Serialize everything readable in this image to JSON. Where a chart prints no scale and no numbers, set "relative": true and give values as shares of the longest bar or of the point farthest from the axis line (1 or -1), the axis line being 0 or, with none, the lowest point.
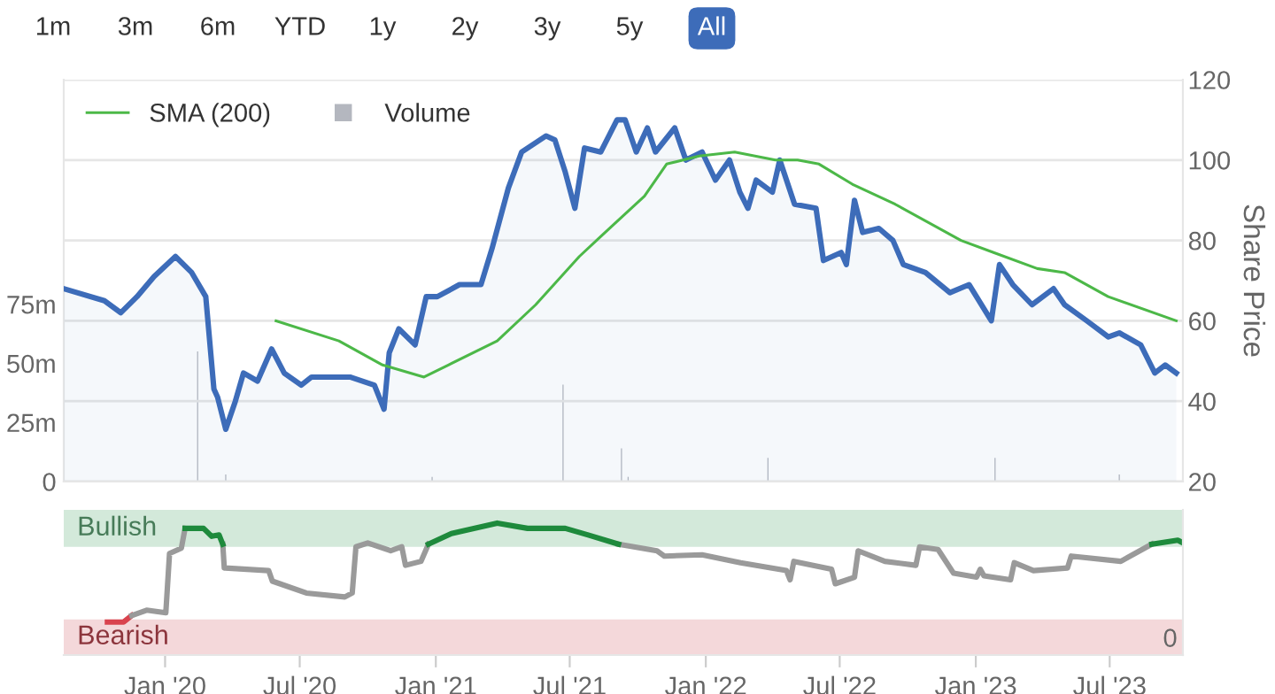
{
  "chart_data": [
    {
      "type": "line",
      "ylabel": "Share Price",
      "xlim": [
        "2019-08-17",
        "2023-10-08"
      ],
      "ylim": [
        20,
        120
      ],
      "yticks": [
        20,
        40,
        60,
        80,
        100,
        120
      ],
      "y2lim": [
        0,
        170
      ],
      "y2ticks": [
        0,
        {
          "value": 25,
          "label": "25m"
        },
        {
          "value": 50,
          "label": "50m"
        },
        {
          "value": 75,
          "label": "75m"
        }
      ],
      "tick_labels": "y",
      "grid": "y",
      "legend": "top left",
      "series": [
        {
          "type": "area",
          "color": "#3d6cb9",
          "x": [
            "2019-08-17",
            "2019-10-11",
            "2019-11-02",
            "2019-11-24",
            "2019-12-17",
            "2020-01-15",
            "2020-02-06",
            "2020-02-25",
            "2020-03-07",
            "2020-03-12",
            "2020-03-23",
            "2020-04-05",
            "2020-04-16",
            "2020-05-05",
            "2020-05-24",
            "2020-06-10",
            "2020-07-03",
            "2020-07-17",
            "2020-09-07",
            "2020-10-10",
            "2020-10-23",
            "2020-10-30",
            "2020-11-12",
            "2020-12-04",
            "2020-12-19",
            "2021-01-03",
            "2021-02-02",
            "2021-03-03",
            "2021-03-18",
            "2021-04-09",
            "2021-04-27",
            "2021-05-30",
            "2021-06-11",
            "2021-06-25",
            "2021-07-08",
            "2021-07-21",
            "2021-08-12",
            "2021-09-03",
            "2021-09-14",
            "2021-09-29",
            "2021-10-14",
            "2021-10-25",
            "2021-11-20",
            "2021-12-05",
            "2021-12-27",
            "2022-01-14",
            "2022-02-02",
            "2022-02-16",
            "2022-02-27",
            "2022-03-10",
            "2022-04-01",
            "2022-04-11",
            "2022-05-01",
            "2022-05-30",
            "2022-06-09",
            "2022-07-03",
            "2022-07-10",
            "2022-07-21",
            "2022-08-01",
            "2022-08-23",
            "2022-09-11",
            "2022-09-25",
            "2022-10-25",
            "2022-11-27",
            "2022-12-23",
            "2023-01-22",
            "2023-02-02",
            "2023-02-20",
            "2023-03-18",
            "2023-04-16",
            "2023-05-01",
            "2023-05-31",
            "2023-06-29",
            "2023-07-14",
            "2023-08-12",
            "2023-08-31",
            "2023-09-14",
            "2023-09-29"
          ],
          "values": [
            68,
            65,
            62,
            66,
            71,
            76,
            72,
            66,
            43,
            41,
            33,
            40,
            47,
            45,
            53,
            47,
            44,
            46,
            46,
            44,
            38,
            52,
            58,
            54,
            66,
            66,
            69,
            69,
            78,
            93,
            102,
            106,
            105,
            97,
            88,
            103,
            102,
            110,
            110,
            102,
            108,
            102,
            108,
            100,
            102,
            95,
            100,
            92,
            88,
            95,
            92,
            100,
            89,
            88,
            75,
            77,
            74,
            90,
            82,
            83,
            80,
            74,
            72,
            67,
            69,
            60,
            74,
            69,
            64,
            68,
            64,
            60,
            56,
            57,
            54,
            47,
            49,
            47
          ]
        },
        {
          "type": "line",
          "name": "SMA (200)",
          "color": "#4cb848",
          "x": [
            "2020-05-30",
            "2020-08-23",
            "2020-10-21",
            "2020-12-16",
            "2021-01-18",
            "2021-03-25",
            "2021-05-16",
            "2021-07-14",
            "2021-08-12",
            "2021-10-10",
            "2021-11-09",
            "2021-12-23",
            "2022-02-09",
            "2022-04-05",
            "2022-05-05",
            "2022-06-03",
            "2022-07-18",
            "2022-09-14",
            "2022-12-12",
            "2023-01-25",
            "2023-03-25",
            "2023-05-01",
            "2023-06-29",
            "2023-09-29"
          ],
          "values": [
            60,
            55,
            49,
            46,
            49,
            55,
            64,
            76,
            81,
            91,
            99,
            101,
            102,
            100,
            100,
            99,
            94,
            89,
            80,
            77,
            73,
            72,
            66,
            60
          ]
        },
        {
          "type": "bar",
          "axis": "y2",
          "name": "Volume",
          "color": "#b4b7bf",
          "x": [
            "2020-02-14",
            "2020-03-23",
            "2020-12-27",
            "2021-06-22",
            "2021-09-09",
            "2021-09-18",
            "2022-03-26",
            "2023-01-27",
            "2023-07-14"
          ],
          "values": [
            55,
            3,
            2,
            41,
            14,
            2,
            10,
            10,
            3
          ]
        }
      ]
    },
    {
      "type": "line",
      "relative": true,
      "annotations": [
        "0"
      ],
      "xlim": [
        "2019-08-17",
        "2023-10-08"
      ],
      "xticks": [
        {
          "value": "2020-01-01",
          "label": "Jan '20"
        },
        {
          "value": "2020-07-01",
          "label": "Jul '20"
        },
        {
          "value": "2021-01-01",
          "label": "Jan '21"
        },
        {
          "value": "2021-07-01",
          "label": "Jul '21"
        },
        {
          "value": "2022-01-01",
          "label": "Jan '22"
        },
        {
          "value": "2022-07-01",
          "label": "Jul '22"
        },
        {
          "value": "2023-01-01",
          "label": "Jan '23"
        },
        {
          "value": "2023-07-01",
          "label": "Jul '23"
        }
      ],
      "bands": [
        {
          "axis": "y",
          "from": 0.82,
          "to": 1.1,
          "label": "Bullish",
          "color": "#d3e9da"
        },
        {
          "axis": "y",
          "from": 0,
          "to": 0.27,
          "label": "Bearish",
          "color": "#f4d8da"
        }
      ],
      "series": [
        {
          "color": "#d9434e",
          "x": [
            "2019-10-15",
            "2019-11-06",
            "2019-11-17"
          ],
          "values": [
            0.25,
            0.25,
            0.3
          ]
        },
        {
          "color": "#9a9a9a",
          "x": [
            "2019-11-17",
            "2019-12-07",
            "2020-01-02",
            "2020-01-07",
            "2020-01-23",
            "2020-01-28",
            "2020-02-20",
            "2020-03-19",
            "2020-03-21",
            "2020-05-20",
            "2020-05-25",
            "2020-07-10",
            "2020-08-31",
            "2020-09-10",
            "2020-09-15",
            "2020-10-01",
            "2020-11-01",
            "2020-11-16",
            "2020-11-21",
            "2020-12-12",
            "2020-12-22",
            "2021-05-01",
            "2021-09-05",
            "2021-10-27",
            "2021-11-06",
            "2021-12-27",
            "2022-02-17",
            "2022-04-20",
            "2022-04-25",
            "2022-04-30",
            "2022-06-20",
            "2022-06-25",
            "2022-07-21",
            "2022-07-26",
            "2022-08-31",
            "2022-10-12",
            "2022-10-17",
            "2022-11-11",
            "2022-12-02",
            "2023-01-02",
            "2023-01-07",
            "2023-01-12",
            "2023-02-17",
            "2023-02-22",
            "2023-03-20",
            "2023-05-05",
            "2023-05-10",
            "2023-07-16",
            "2023-08-27"
          ],
          "values": [
            0.3,
            0.34,
            0.32,
            0.77,
            0.81,
            0.96,
            null,
            0.84,
            0.66,
            0.64,
            0.56,
            0.47,
            0.44,
            0.47,
            0.82,
            0.85,
            0.79,
            0.82,
            0.68,
            0.71,
            0.84,
            null,
            0.84,
            0.79,
            0.75,
            0.76,
            0.7,
            0.64,
            0.57,
            0.71,
            0.65,
            0.54,
            0.59,
            0.79,
            0.71,
            0.68,
            0.82,
            0.8,
            0.62,
            0.59,
            0.65,
            0.6,
            0.57,
            0.7,
            0.64,
            0.66,
            0.75,
            0.71,
            0.84
          ]
        },
        {
          "color": "#1e8a3c",
          "x": [
            "2020-01-28",
            "2020-02-22",
            "2020-03-04",
            "2020-03-14",
            "2020-03-19",
            "2020-07-01",
            "2020-12-22",
            "2021-01-22",
            "2021-03-25",
            "2021-05-05",
            "2021-06-25",
            "2021-07-26",
            "2021-09-05",
            "2022-06-01",
            "2023-08-27",
            "2023-10-01",
            "2023-10-08"
          ],
          "values": [
            0.96,
            0.96,
            0.9,
            0.91,
            0.84,
            null,
            0.84,
            0.92,
            1,
            0.96,
            0.96,
            0.91,
            0.84,
            null,
            0.84,
            0.87,
            0.85
          ]
        }
      ]
    },
    {
      "type": "other",
      "annotations": [
        "1m",
        "3m",
        "6m",
        "YTD",
        "1y",
        "2y",
        "3y",
        "5y",
        "All"
      ]
    }
  ]
}
